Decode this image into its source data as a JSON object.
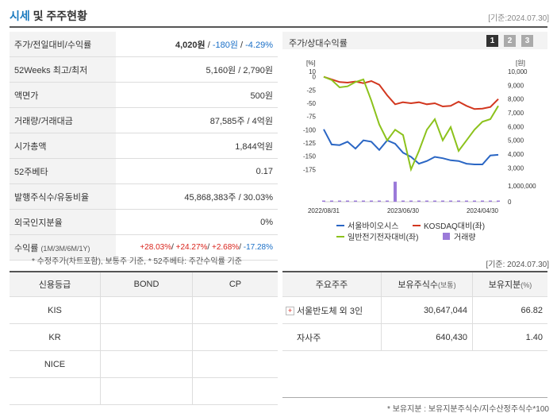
{
  "header": {
    "title_accent": "시세",
    "title_rest": " 및 주주현황",
    "date": "[기준:2024.07.30]"
  },
  "info": [
    {
      "label": "주가/전일대비/수익률",
      "v1": "4,020원",
      "v2": "-180원",
      "v3": "-4.29%"
    },
    {
      "label": "52Weeks 최고/최저",
      "value": "5,160원 / 2,790원"
    },
    {
      "label": "액면가",
      "value": "500원"
    },
    {
      "label": "거래량/거래대금",
      "value": "87,585주 / 4억원"
    },
    {
      "label": "시가총액",
      "value": "1,844억원"
    },
    {
      "label": "52주베타",
      "value": "0.17"
    },
    {
      "label": "발행주식수/유동비율",
      "value": "45,868,383주 / 30.03%"
    },
    {
      "label": "외국인지분율",
      "value": "0%"
    },
    {
      "label": "수익률",
      "label_sub": "(1M/3M/6M/1Y)",
      "r1": "+28.03%",
      "r2": "+24.27%",
      "r3": "+2.68%",
      "r4": "-17.28%"
    }
  ],
  "info_note": "* 수정주가(차트포함), 보통주 기준, * 52주베타: 주간수익률 기준",
  "chart": {
    "title": "주가/상대수익률",
    "pages": [
      "1",
      "2",
      "3"
    ],
    "left_unit": "[%]",
    "right_unit": "[원]",
    "left_ticks": [
      "10",
      "0",
      "-25",
      "-50",
      "-75",
      "-100",
      "-125",
      "-150",
      "-175"
    ],
    "right_ticks": [
      "10,000",
      "9,000",
      "8,000",
      "7,000",
      "6,000",
      "5,000",
      "4,000",
      "3,000"
    ],
    "vol_tick_top": "1,000,000",
    "vol_tick_zero": "0",
    "x_labels": [
      "2022/08/31",
      "2023/06/30",
      "2024/04/30"
    ],
    "legend": [
      "서울바이오시스",
      "KOSDAQ대비(좌)",
      "일반전기전자대비(좌)",
      "거래량"
    ],
    "date": "[기준: 2024.07.30]"
  },
  "chart_data": {
    "type": "line",
    "x": [
      "2022/08/31",
      "",
      "",
      "",
      "",
      "",
      "",
      "",
      "",
      "",
      "2023/06/30",
      "",
      "",
      "",
      "",
      "",
      "",
      "",
      "",
      "",
      "2024/04/30",
      "",
      ""
    ],
    "ylim_left": [
      -185,
      10
    ],
    "ylim_right": [
      2500,
      10000
    ],
    "series": [
      {
        "name": "서울바이오시스",
        "color": "#2a66c4",
        "axis": "right",
        "values": [
          5800,
          4700,
          4650,
          4900,
          4400,
          5000,
          4900,
          4300,
          5000,
          4750,
          4100,
          3800,
          3300,
          3500,
          3800,
          3700,
          3550,
          3500,
          3300,
          3250,
          3250,
          3900,
          3950
        ]
      },
      {
        "name": "KOSDAQ대비(좌)",
        "color": "#d2371f",
        "axis": "left",
        "values": [
          0,
          -5,
          -10,
          -11,
          -9,
          -12,
          -8,
          -15,
          -35,
          -52,
          -48,
          -50,
          -48,
          -52,
          -50,
          -56,
          -55,
          -47,
          -55,
          -61,
          -60,
          -57,
          -42
        ]
      },
      {
        "name": "일반전기전자대비(좌)",
        "color": "#8cc21c",
        "axis": "left",
        "values": [
          0,
          -6,
          -20,
          -18,
          -10,
          -5,
          -45,
          -90,
          -120,
          -100,
          -110,
          -175,
          -140,
          -100,
          -80,
          -120,
          -95,
          -140,
          -120,
          -100,
          -85,
          -80,
          -55
        ]
      },
      {
        "name": "거래량",
        "color": "#9b7ad9",
        "axis": "volume",
        "values": [
          30000,
          20000,
          15000,
          25000,
          18000,
          22000,
          12000,
          15000,
          35000,
          1300000,
          30000,
          25000,
          20000,
          18000,
          15000,
          22000,
          14000,
          16000,
          12000,
          18000,
          15000,
          14000,
          40000
        ]
      }
    ],
    "vol_max": 1800000
  },
  "credit": {
    "headers": [
      "신용등급",
      "BOND",
      "CP"
    ],
    "rows": [
      [
        "KIS",
        "",
        ""
      ],
      [
        "KR",
        "",
        ""
      ],
      [
        "NICE",
        "",
        ""
      ],
      [
        "",
        "",
        ""
      ]
    ]
  },
  "shareholders": {
    "headers": [
      "주요주주",
      "보유주식수",
      "(보통)",
      "보유지분",
      "(%)"
    ],
    "rows": [
      {
        "name": "서울반도체 외 3인",
        "shares": "30,647,044",
        "pct": "66.82",
        "expand": true
      },
      {
        "name": "자사주",
        "shares": "640,430",
        "pct": "1.40",
        "expand": false
      }
    ],
    "note": "* 보유지분 : 보유지분주식수/지수산정주식수*100"
  },
  "colors": {
    "accent": "#1a7abf",
    "neg": "#1a6fc7",
    "pos": "#d9241c"
  }
}
